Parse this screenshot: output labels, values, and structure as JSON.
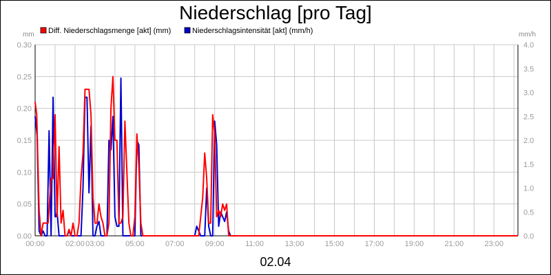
{
  "chart_data": {
    "type": "line",
    "title": "Niederschlag [pro Tag]",
    "xlabel": "02.04",
    "ylabel_left": "mm",
    "ylabel_right": "mm/h",
    "xlim": [
      0,
      24.2
    ],
    "ylim_left": [
      0,
      0.3
    ],
    "ylim_right": [
      0,
      4.0
    ],
    "grid": true,
    "legend": "top-left",
    "x_tick_labels": [
      "00:00",
      "02:00",
      "03:00",
      "05:00",
      "07:00",
      "09:00",
      "11:00",
      "13:00",
      "15:00",
      "17:00",
      "19:00",
      "21:00",
      "23:00"
    ],
    "x_tick_values": [
      0,
      2,
      3,
      5,
      7,
      9,
      11,
      13,
      15,
      17,
      19,
      21,
      23
    ],
    "x_grid_values": [
      0,
      1,
      2,
      3,
      4,
      5,
      6,
      7,
      8,
      9,
      10,
      11,
      12,
      13,
      14,
      15,
      16,
      17,
      18,
      19,
      20,
      21,
      22,
      23,
      24
    ],
    "y_left_ticks": [
      "0.00",
      "0.05",
      "0.10",
      "0.15",
      "0.20",
      "0.25",
      "0.30"
    ],
    "y_left_tick_values": [
      0,
      0.05,
      0.1,
      0.15,
      0.2,
      0.25,
      0.3
    ],
    "y_right_ticks": [
      "0.0",
      "0.5",
      "1.0",
      "1.5",
      "2.0",
      "2.5",
      "3.0",
      "3.5",
      "4.0"
    ],
    "y_right_tick_values": [
      0,
      0.5,
      1.0,
      1.5,
      2.0,
      2.5,
      3.0,
      3.5,
      4.0
    ],
    "series": [
      {
        "name": "Diff. Niederschlagsmenge [akt] (mm)",
        "axis": "left",
        "color": "#ff0000",
        "x": [
          0.0,
          0.08,
          0.2,
          0.3,
          0.4,
          0.5,
          0.65,
          0.8,
          0.9,
          1.0,
          1.1,
          1.2,
          1.3,
          1.4,
          1.5,
          1.6,
          1.7,
          1.8,
          1.9,
          2.0,
          2.1,
          2.2,
          2.3,
          2.4,
          2.5,
          2.6,
          2.7,
          2.8,
          2.9,
          3.0,
          3.1,
          3.2,
          3.3,
          3.4,
          3.5,
          3.6,
          3.7,
          3.8,
          3.9,
          4.0,
          4.1,
          4.2,
          4.3,
          4.4,
          4.5,
          4.6,
          4.7,
          4.8,
          4.9,
          5.0,
          5.1,
          5.2,
          5.3,
          5.4,
          5.5,
          5.6,
          5.7,
          5.8,
          6.0,
          7.0,
          7.5,
          8.0,
          8.2,
          8.4,
          8.5,
          8.6,
          8.7,
          8.8,
          8.9,
          9.0,
          9.1,
          9.2,
          9.3,
          9.4,
          9.5,
          9.6,
          9.7,
          9.8,
          9.9,
          10.0,
          11.0,
          24.2
        ],
        "values": [
          0.21,
          0.19,
          0.04,
          0.0,
          0.02,
          0.02,
          0.02,
          0.09,
          0.09,
          0.19,
          0.03,
          0.14,
          0.02,
          0.04,
          0.0,
          0.0,
          0.01,
          0.0,
          0.02,
          0.0,
          0.0,
          0.02,
          0.09,
          0.13,
          0.23,
          0.23,
          0.23,
          0.19,
          0.06,
          0.02,
          0.02,
          0.05,
          0.03,
          0.02,
          0.0,
          0.0,
          0.02,
          0.2,
          0.25,
          0.15,
          0.15,
          0.02,
          0.02,
          0.03,
          0.18,
          0.1,
          0.02,
          0.0,
          0.0,
          0.03,
          0.16,
          0.11,
          0.02,
          0.0,
          0.0,
          0.0,
          0.0,
          0.0,
          0.0,
          0.0,
          0.0,
          0.0,
          0.0,
          0.06,
          0.13,
          0.09,
          0.02,
          0.02,
          0.19,
          0.16,
          0.03,
          0.04,
          0.03,
          0.05,
          0.04,
          0.05,
          0.0,
          0.0,
          0.0,
          0.0,
          0.0,
          0.0
        ]
      },
      {
        "name": "Niederschlagsintensität [akt] (mm/h)",
        "axis": "right",
        "color": "#0000cc",
        "x": [
          0.0,
          0.1,
          0.2,
          0.3,
          0.4,
          0.5,
          0.6,
          0.7,
          0.8,
          0.9,
          1.0,
          1.05,
          1.1,
          1.2,
          1.3,
          1.4,
          1.5,
          1.6,
          1.7,
          1.8,
          1.9,
          2.0,
          2.1,
          2.2,
          2.3,
          2.4,
          2.5,
          2.6,
          2.7,
          2.8,
          2.9,
          3.0,
          3.1,
          3.2,
          3.3,
          3.4,
          3.5,
          3.6,
          3.7,
          3.8,
          3.9,
          4.0,
          4.1,
          4.2,
          4.3,
          4.4,
          4.5,
          4.6,
          4.7,
          4.8,
          4.9,
          5.0,
          5.1,
          5.2,
          5.3,
          5.4,
          5.5,
          5.6,
          5.7,
          6.0,
          7.0,
          7.5,
          8.0,
          8.1,
          8.2,
          8.3,
          8.4,
          8.5,
          8.6,
          8.7,
          8.8,
          8.9,
          9.0,
          9.1,
          9.2,
          9.3,
          9.4,
          9.5,
          9.6,
          9.7,
          9.8,
          9.9,
          10.0,
          11.0,
          24.2
        ],
        "values": [
          2.5,
          2.1,
          0.1,
          0.0,
          0.1,
          0.0,
          0.0,
          2.2,
          0.0,
          2.9,
          0.4,
          0.4,
          0.5,
          0.0,
          0.0,
          0.0,
          0.0,
          0.0,
          0.1,
          0.0,
          0.0,
          0.0,
          0.0,
          0.0,
          0.0,
          1.0,
          2.9,
          2.9,
          0.9,
          2.3,
          0.0,
          0.0,
          0.2,
          0.3,
          0.0,
          0.0,
          0.0,
          0.0,
          2.0,
          1.8,
          2.5,
          0.4,
          0.2,
          0.2,
          3.3,
          0.0,
          0.0,
          0.0,
          0.0,
          0.0,
          0.0,
          0.0,
          2.0,
          1.9,
          0.0,
          0.0,
          0.0,
          0.0,
          0.0,
          0.0,
          0.0,
          0.0,
          0.0,
          0.2,
          0.1,
          0.0,
          0.0,
          0.0,
          1.0,
          0.2,
          0.0,
          0.0,
          2.4,
          1.9,
          0.2,
          0.5,
          0.4,
          0.3,
          0.5,
          0.1,
          0.0,
          0.0,
          0.0,
          0.0,
          0.0
        ]
      }
    ]
  }
}
